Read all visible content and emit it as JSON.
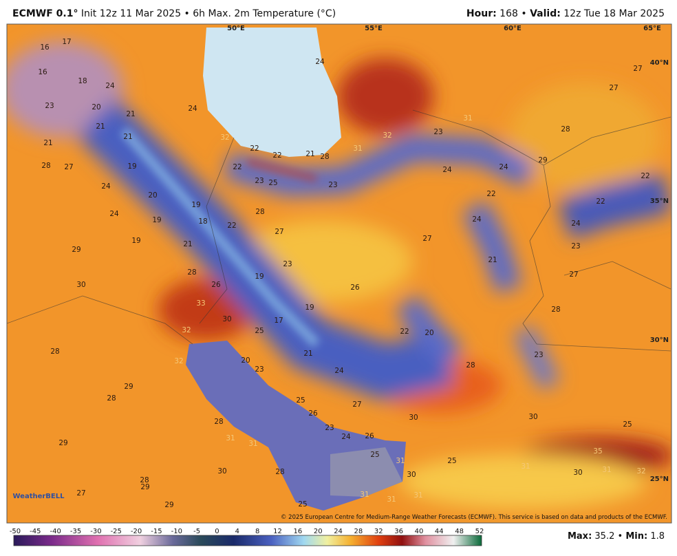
{
  "header": {
    "model": "ECMWF 0.1°",
    "run": "Init 12z 11 Mar 2025 • 6h Max. 2m Temperature (°C)",
    "hour_label": "Hour:",
    "hour": 168,
    "separator": "•",
    "valid_label": "Valid:",
    "valid": "12z Tue 18 Mar 2025"
  },
  "map": {
    "longitudes": [
      "50°E",
      "55°E",
      "60°E",
      "65°E"
    ],
    "latitudes": [
      "40°N",
      "35°N",
      "30°N",
      "25°N"
    ],
    "labels": [
      16,
      17,
      16,
      18,
      24,
      23,
      20,
      21,
      21,
      21,
      21,
      24,
      32,
      22,
      22,
      21,
      28,
      31,
      32,
      23,
      31,
      28,
      27,
      27,
      24,
      28,
      27,
      19,
      22,
      23,
      25,
      23,
      24,
      24,
      29,
      22,
      22,
      24,
      20,
      19,
      19,
      18,
      22,
      28,
      22,
      24,
      24,
      23,
      24,
      19,
      21,
      27,
      27,
      21,
      29,
      23,
      27,
      28,
      26,
      19,
      26,
      30,
      33,
      19,
      28,
      30,
      17,
      22,
      20,
      32,
      25,
      28,
      32,
      20,
      21,
      23,
      24,
      28,
      23,
      29,
      28,
      25,
      27,
      26,
      30,
      25,
      28,
      30,
      23,
      24,
      26,
      31,
      29,
      31,
      25,
      31,
      25,
      35,
      28,
      30,
      30,
      31,
      30,
      31,
      32,
      28,
      29,
      27,
      31,
      31,
      31,
      25,
      29
    ]
  },
  "logo": "WeatherBELL",
  "copyright": "© 2025 European Centre for Medium-Range Weather Forecasts (ECMWF). This service is based on data and products of the ECMWF.",
  "colorbar": {
    "ticks": [
      -50,
      -45,
      -40,
      -35,
      -30,
      -25,
      -20,
      -15,
      -10,
      -5,
      0,
      4,
      8,
      12,
      16,
      20,
      24,
      28,
      32,
      36,
      40,
      44,
      48,
      52
    ]
  },
  "stats": {
    "max_label": "Max:",
    "max": 35.2,
    "separator": "•",
    "min_label": "Min:",
    "min": 1.8
  }
}
